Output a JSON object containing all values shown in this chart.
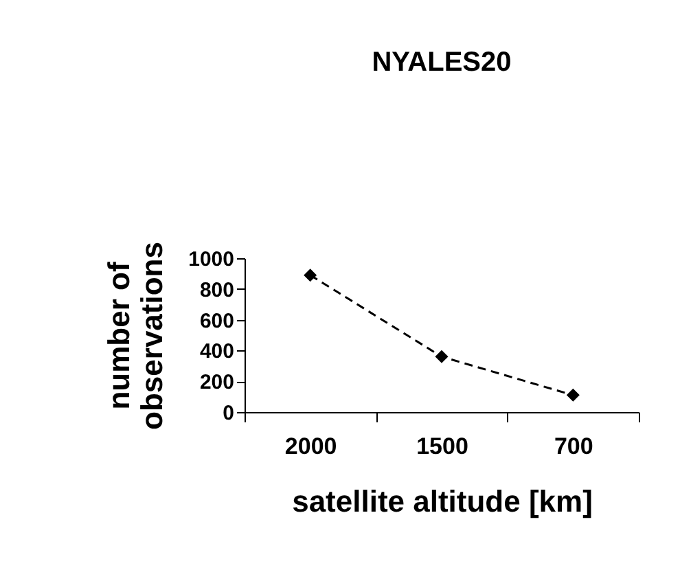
{
  "chart_data": {
    "type": "line",
    "title": "NYALES20",
    "xlabel": "satellite altitude [km]",
    "ylabel": "number of observations",
    "categories": [
      "2000",
      "1500",
      "700"
    ],
    "series": [
      {
        "color": "#000000",
        "values": [
          890,
          360,
          110
        ]
      }
    ],
    "ylim": [
      0,
      1000
    ],
    "yticks": [
      0,
      200,
      400,
      600,
      800,
      1000
    ],
    "marker": "diamond",
    "line_style": "dashed",
    "grid": false,
    "legend": false
  }
}
